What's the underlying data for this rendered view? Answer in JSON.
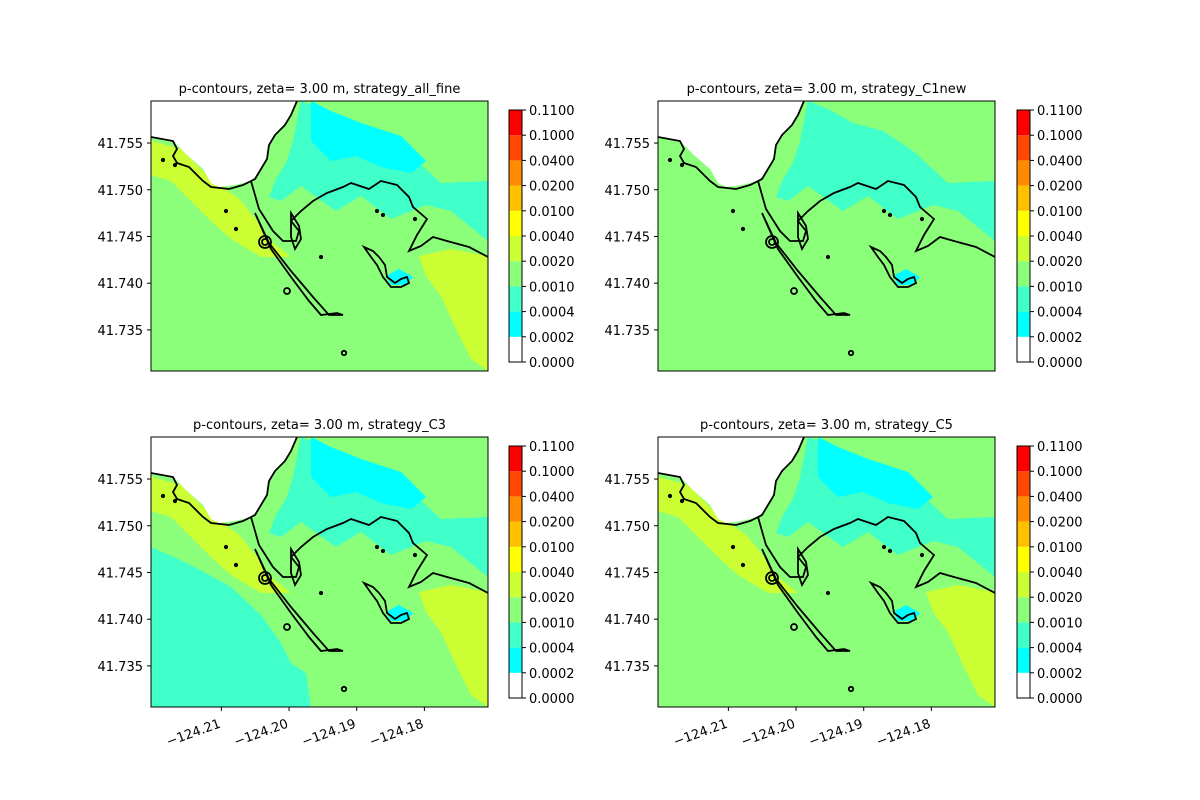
{
  "figure": {
    "colorbar_levels": [
      "0.0000",
      "0.0002",
      "0.0004",
      "0.0010",
      "0.0020",
      "0.0040",
      "0.0100",
      "0.0200",
      "0.0400",
      "0.1000",
      "0.1100"
    ],
    "colorbar_colors": [
      "#ffffff",
      "#00ffff",
      "#40ffc8",
      "#8cff7a",
      "#ccff33",
      "#ffff00",
      "#ffc000",
      "#ff8c00",
      "#ff4800",
      "#ff0000"
    ],
    "coast_color": "#000000"
  },
  "chart_data": [
    {
      "type": "heatmap",
      "title": "p-contours, zeta= 3.00 m, strategy_all_fine",
      "xlabel": "",
      "ylabel": "",
      "xlim": [
        -124.2204,
        -124.1706
      ],
      "ylim": [
        41.7306,
        41.7595
      ],
      "x_ticks": [],
      "x_tick_labels": [],
      "y_ticks": [
        41.735,
        41.74,
        41.745,
        41.75,
        41.755
      ],
      "y_tick_labels": [
        "41.735",
        "41.740",
        "41.745",
        "41.750",
        "41.755"
      ],
      "colorbar_ticks": [
        "0.0000",
        "0.0002",
        "0.0004",
        "0.0010",
        "0.0020",
        "0.0040",
        "0.0100",
        "0.0200",
        "0.0400",
        "0.1000",
        "0.1100"
      ],
      "dominant_level": "0.0010-0.0020",
      "regions": [
        {
          "level": "0.0020-0.0040",
          "area": "nearshore band west of jetty"
        },
        {
          "level": "0.0020-0.0040",
          "area": "southeast corner"
        },
        {
          "level": "0.0004-0.0010",
          "area": "north of harbor"
        },
        {
          "level": "0.0002-0.0004",
          "area": "northern inlet patches"
        }
      ]
    },
    {
      "type": "heatmap",
      "title": "p-contours, zeta= 3.00 m, strategy_C1new",
      "xlabel": "",
      "ylabel": "",
      "xlim": [
        -124.2204,
        -124.1706
      ],
      "ylim": [
        41.7306,
        41.7595
      ],
      "x_ticks": [],
      "x_tick_labels": [],
      "y_ticks": [
        41.735,
        41.74,
        41.745,
        41.75,
        41.755
      ],
      "y_tick_labels": [
        "41.735",
        "41.740",
        "41.745",
        "41.750",
        "41.755"
      ],
      "colorbar_ticks": [
        "0.0000",
        "0.0002",
        "0.0004",
        "0.0010",
        "0.0020",
        "0.0040",
        "0.0100",
        "0.0200",
        "0.0400",
        "0.1000",
        "0.1100"
      ],
      "dominant_level": "0.0010-0.0020",
      "regions": [
        {
          "level": "0.0004-0.0010",
          "area": "north of harbor"
        },
        {
          "level": "0.0002-0.0004",
          "area": "small inlet patches"
        }
      ]
    },
    {
      "type": "heatmap",
      "title": "p-contours, zeta= 3.00 m, strategy_C3",
      "xlabel": "",
      "ylabel": "",
      "xlim": [
        -124.2204,
        -124.1706
      ],
      "ylim": [
        41.7306,
        41.7595
      ],
      "x_ticks": [
        -124.21,
        -124.2,
        -124.19,
        -124.18
      ],
      "x_tick_labels": [
        "−124.21",
        "−124.20",
        "−124.19",
        "−124.18"
      ],
      "y_ticks": [
        41.735,
        41.74,
        41.745,
        41.75,
        41.755
      ],
      "y_tick_labels": [
        "41.735",
        "41.740",
        "41.745",
        "41.750",
        "41.755"
      ],
      "colorbar_ticks": [
        "0.0000",
        "0.0002",
        "0.0004",
        "0.0010",
        "0.0020",
        "0.0040",
        "0.0100",
        "0.0200",
        "0.0400",
        "0.1000",
        "0.1100"
      ],
      "dominant_level": "0.0010-0.0020",
      "regions": [
        {
          "level": "0.0004-0.0010",
          "area": "west and southwest offshore"
        },
        {
          "level": "0.0020-0.0040",
          "area": "nearshore band west of jetty"
        },
        {
          "level": "0.0020-0.0040",
          "area": "southeast corner"
        },
        {
          "level": "0.0004-0.0010",
          "area": "north of harbor"
        }
      ]
    },
    {
      "type": "heatmap",
      "title": "p-contours, zeta= 3.00 m, strategy_C5",
      "xlabel": "",
      "ylabel": "",
      "xlim": [
        -124.2204,
        -124.1706
      ],
      "ylim": [
        41.7306,
        41.7595
      ],
      "x_ticks": [
        -124.21,
        -124.2,
        -124.19,
        -124.18
      ],
      "x_tick_labels": [
        "−124.21",
        "−124.20",
        "−124.19",
        "−124.18"
      ],
      "y_ticks": [
        41.735,
        41.74,
        41.745,
        41.75,
        41.755
      ],
      "y_tick_labels": [
        "41.735",
        "41.740",
        "41.745",
        "41.750",
        "41.755"
      ],
      "colorbar_ticks": [
        "0.0000",
        "0.0002",
        "0.0004",
        "0.0010",
        "0.0020",
        "0.0040",
        "0.0100",
        "0.0200",
        "0.0400",
        "0.1000",
        "0.1100"
      ],
      "dominant_level": "0.0010-0.0020",
      "regions": [
        {
          "level": "0.0020-0.0040",
          "area": "nearshore band west of jetty"
        },
        {
          "level": "0.0020-0.0040",
          "area": "southeast corner"
        },
        {
          "level": "0.0004-0.0010",
          "area": "north of harbor"
        }
      ]
    }
  ]
}
